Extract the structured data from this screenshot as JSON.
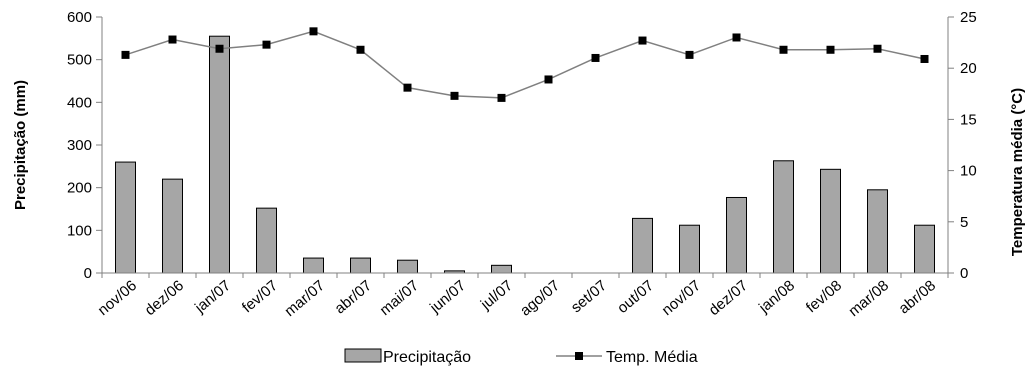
{
  "chart_data": {
    "type": "bar",
    "categories": [
      "nov/06",
      "dez/06",
      "jan/07",
      "fev/07",
      "mar/07",
      "abr/07",
      "mai/07",
      "jun/07",
      "jul/07",
      "ago/07",
      "set/07",
      "out/07",
      "nov/07",
      "dez/07",
      "jan/08",
      "fev/08",
      "mar/08",
      "abr/08"
    ],
    "series": [
      {
        "name": "Precipitação",
        "type": "bar",
        "axis": "left",
        "values": [
          260,
          220,
          555,
          152,
          35,
          35,
          30,
          5,
          18,
          0,
          0,
          128,
          112,
          177,
          263,
          243,
          195,
          112
        ]
      },
      {
        "name": "Temp. Média",
        "type": "line",
        "axis": "right",
        "values": [
          21.3,
          22.8,
          21.9,
          22.3,
          23.6,
          21.8,
          18.1,
          17.3,
          17.1,
          18.9,
          21.0,
          22.7,
          21.3,
          23.0,
          21.8,
          21.8,
          21.9,
          20.9
        ]
      }
    ],
    "ylabel": "Precipitação (mm)",
    "y2label": "Temperatura média (°C)",
    "ylim": [
      0,
      600
    ],
    "y2lim": [
      0,
      25
    ],
    "yticks": [
      0,
      100,
      200,
      300,
      400,
      500,
      600
    ],
    "y2ticks": [
      0,
      5,
      10,
      15,
      20,
      25
    ],
    "grid": false,
    "legend_position": "bottom-center",
    "colors": {
      "bar_fill": "#a6a6a6",
      "bar_stroke": "#000000",
      "line": "#808080",
      "marker": "#000000",
      "axis": "#808080"
    }
  }
}
